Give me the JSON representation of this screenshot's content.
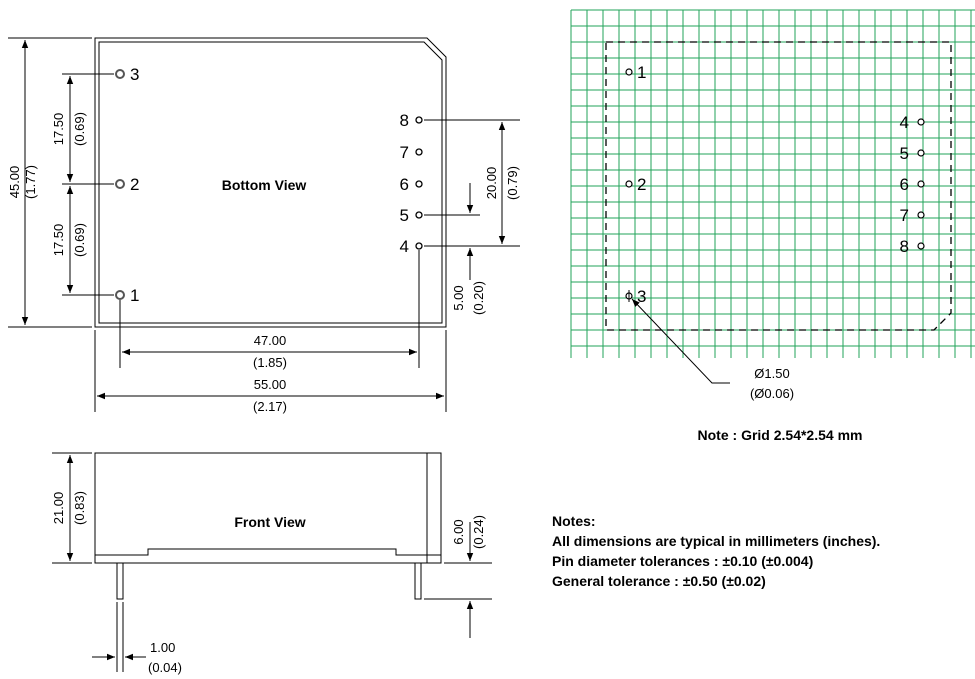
{
  "bottom_view": {
    "title": "Bottom View",
    "pins": [
      {
        "label": "1"
      },
      {
        "label": "2"
      },
      {
        "label": "3"
      },
      {
        "label": "4"
      },
      {
        "label": "5"
      },
      {
        "label": "6"
      },
      {
        "label": "7"
      },
      {
        "label": "8"
      }
    ],
    "dims": {
      "height": {
        "mm": "45.00",
        "in": "(1.77)"
      },
      "pin3_to_pin2": {
        "mm": "17.50",
        "in": "(0.69)"
      },
      "pin2_to_pin1": {
        "mm": "17.50",
        "in": "(0.69)"
      },
      "pin8_to_pin4": {
        "mm": "20.00",
        "in": "(0.79)"
      },
      "pin5_to_pin4": {
        "mm": "5.00",
        "in": "(0.20)"
      },
      "pin_span": {
        "mm": "47.00",
        "in": "(1.85)"
      },
      "width": {
        "mm": "55.00",
        "in": "(2.17)"
      }
    }
  },
  "front_view": {
    "title": "Front View",
    "dims": {
      "height": {
        "mm": "21.00",
        "in": "(0.83)"
      },
      "pin_length": {
        "mm": "6.00",
        "in": "(0.24)"
      },
      "pin_width": {
        "mm": "1.00",
        "in": "(0.04)"
      }
    }
  },
  "footprint": {
    "pins": [
      {
        "label": "1"
      },
      {
        "label": "2"
      },
      {
        "label": "3"
      },
      {
        "label": "4"
      },
      {
        "label": "5"
      },
      {
        "label": "6"
      },
      {
        "label": "7"
      },
      {
        "label": "8"
      }
    ],
    "hole": {
      "mm": "Ø1.50",
      "in": "(Ø0.06)"
    },
    "grid_note": "Note : Grid 2.54*2.54 mm",
    "grid_color": "#22a35a"
  },
  "notes": {
    "heading": "Notes:",
    "lines": [
      "All dimensions are typical in millimeters (inches).",
      "Pin diameter tolerances : ±0.10 (±0.004)",
      "General tolerance : ±0.50 (±0.02)"
    ]
  }
}
